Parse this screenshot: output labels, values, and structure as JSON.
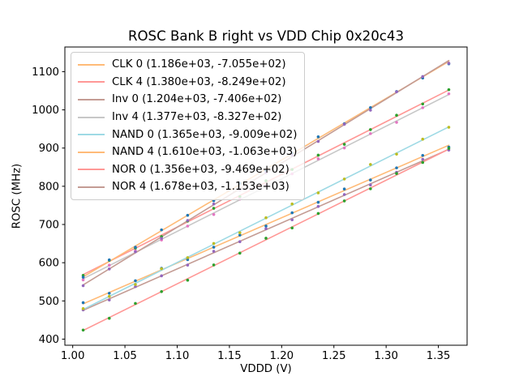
{
  "figure": {
    "background": "#ffffff"
  },
  "chart_data": {
    "type": "scatter",
    "title": "ROSC Bank B right vs VDD Chip 0x20c43",
    "xlabel": "VDDD (V)",
    "ylabel": "ROSC (MHz)",
    "grid": false,
    "legend_position": "upper left",
    "axes_color": "#000000",
    "xlim": [
      0.9925,
      1.3775
    ],
    "ylim": [
      384,
      1164.5
    ],
    "xtick_values": [
      1.0,
      1.05,
      1.1,
      1.15,
      1.2,
      1.25,
      1.3,
      1.35
    ],
    "xtick_labels": [
      "1.00",
      "1.05",
      "1.10",
      "1.15",
      "1.20",
      "1.25",
      "1.30",
      "1.35"
    ],
    "ytick_values": [
      400,
      500,
      600,
      700,
      800,
      900,
      1000,
      1100
    ],
    "ytick_labels": [
      "400",
      "500",
      "600",
      "700",
      "800",
      "900",
      "1000",
      "1100"
    ],
    "x": [
      1.01,
      1.035,
      1.06,
      1.085,
      1.11,
      1.135,
      1.16,
      1.185,
      1.21,
      1.235,
      1.26,
      1.285,
      1.31,
      1.335,
      1.36
    ],
    "fit_x_range": [
      1.01,
      1.36
    ],
    "series": [
      {
        "name": "CLK 0",
        "legend_label": "CLK 0 (1.186e+03, -7.055e+02)",
        "slope": 1186,
        "intercept": -705.5,
        "line_color": "#ffbb78",
        "marker_color": "#1f77b4",
        "y": [
          495.4,
          520.0,
          552.7,
          585.3,
          608.0,
          640.6,
          672.3,
          695.9,
          730.6,
          758.2,
          792.9,
          816.5,
          848.2,
          880.8,
          902.5
        ]
      },
      {
        "name": "CLK 4",
        "legend_label": "CLK 4 (1.380e+03, -8.249e+02)",
        "slope": 1380,
        "intercept": -824.9,
        "line_color": "#ff9896",
        "marker_color": "#2ca02c",
        "y": [
          566.9,
          606.4,
          637.9,
          668.4,
          708.9,
          742.4,
          772.9,
          814.4,
          843.9,
          881.4,
          909.9,
          948.4,
          985.9,
          1015.4,
          1052.9
        ]
      },
      {
        "name": "Inv 0",
        "legend_label": "Inv 0 (1.204e+03, -7.406e+02)",
        "slope": 1204,
        "intercept": -740.6,
        "line_color": "#c49c94",
        "marker_color": "#9467bd",
        "y": [
          476.4,
          502.5,
          537.6,
          565.7,
          593.8,
          629.9,
          655.0,
          689.1,
          712.2,
          747.3,
          778.4,
          803.5,
          836.6,
          870.7,
          894.8
        ]
      },
      {
        "name": "Inv 4",
        "legend_label": "Inv 4 (1.377e+03, -8.327e+02)",
        "slope": 1377,
        "intercept": -832.7,
        "line_color": "#c7c7c7",
        "marker_color": "#e377c2",
        "y": [
          555.1,
          593.5,
          630.9,
          659.4,
          695.8,
          726.2,
          766.6,
          802.1,
          832.5,
          871.9,
          900.4,
          937.8,
          967.2,
          1005.6,
          1042.0
        ]
      },
      {
        "name": "NAND 0",
        "legend_label": "NAND 0 (1.365e+03, -9.009e+02)",
        "slope": 1365,
        "intercept": -900.9,
        "line_color": "#9edae5",
        "marker_color": "#bcbd22",
        "y": [
          479.8,
          511.9,
          543.0,
          584.1,
          613.3,
          650.4,
          678.5,
          717.6,
          753.7,
          782.8,
          819.0,
          857.1,
          884.2,
          923.3,
          954.4
        ]
      },
      {
        "name": "NAND 4",
        "legend_label": "NAND 4 (1.610e+03, -1.063e+03)",
        "slope": 1610,
        "intercept": -1063,
        "line_color": "#ffbb78",
        "marker_color": "#1f77b4",
        "y": [
          562.1,
          607.4,
          640.6,
          685.9,
          724.1,
          762.4,
          807.6,
          840.9,
          886.1,
          929.4,
          963.6,
          1005.9,
          1048.1,
          1083.4,
          1120.6
        ]
      },
      {
        "name": "NOR 0",
        "legend_label": "NOR 0 (1.356e+03, -9.469e+02)",
        "slope": 1356,
        "intercept": -946.9,
        "line_color": "#ff9896",
        "marker_color": "#2ca02c",
        "y": [
          423.7,
          454.6,
          493.5,
          524.4,
          554.3,
          594.2,
          625.1,
          664.0,
          690.9,
          728.8,
          761.7,
          793.6,
          833.5,
          862.4,
          899.3
        ]
      },
      {
        "name": "NOR 4",
        "legend_label": "NOR 4 (1.678e+03, -1.153e+03)",
        "slope": 1678,
        "intercept": -1153,
        "line_color": "#c49c94",
        "marker_color": "#9467bd",
        "y": [
          539.8,
          583.7,
          628.7,
          663.6,
          710.6,
          753.6,
          790.5,
          835.5,
          881.4,
          917.4,
          962.3,
          999.3,
          1047.2,
          1087.2,
          1122.1
        ]
      }
    ]
  }
}
